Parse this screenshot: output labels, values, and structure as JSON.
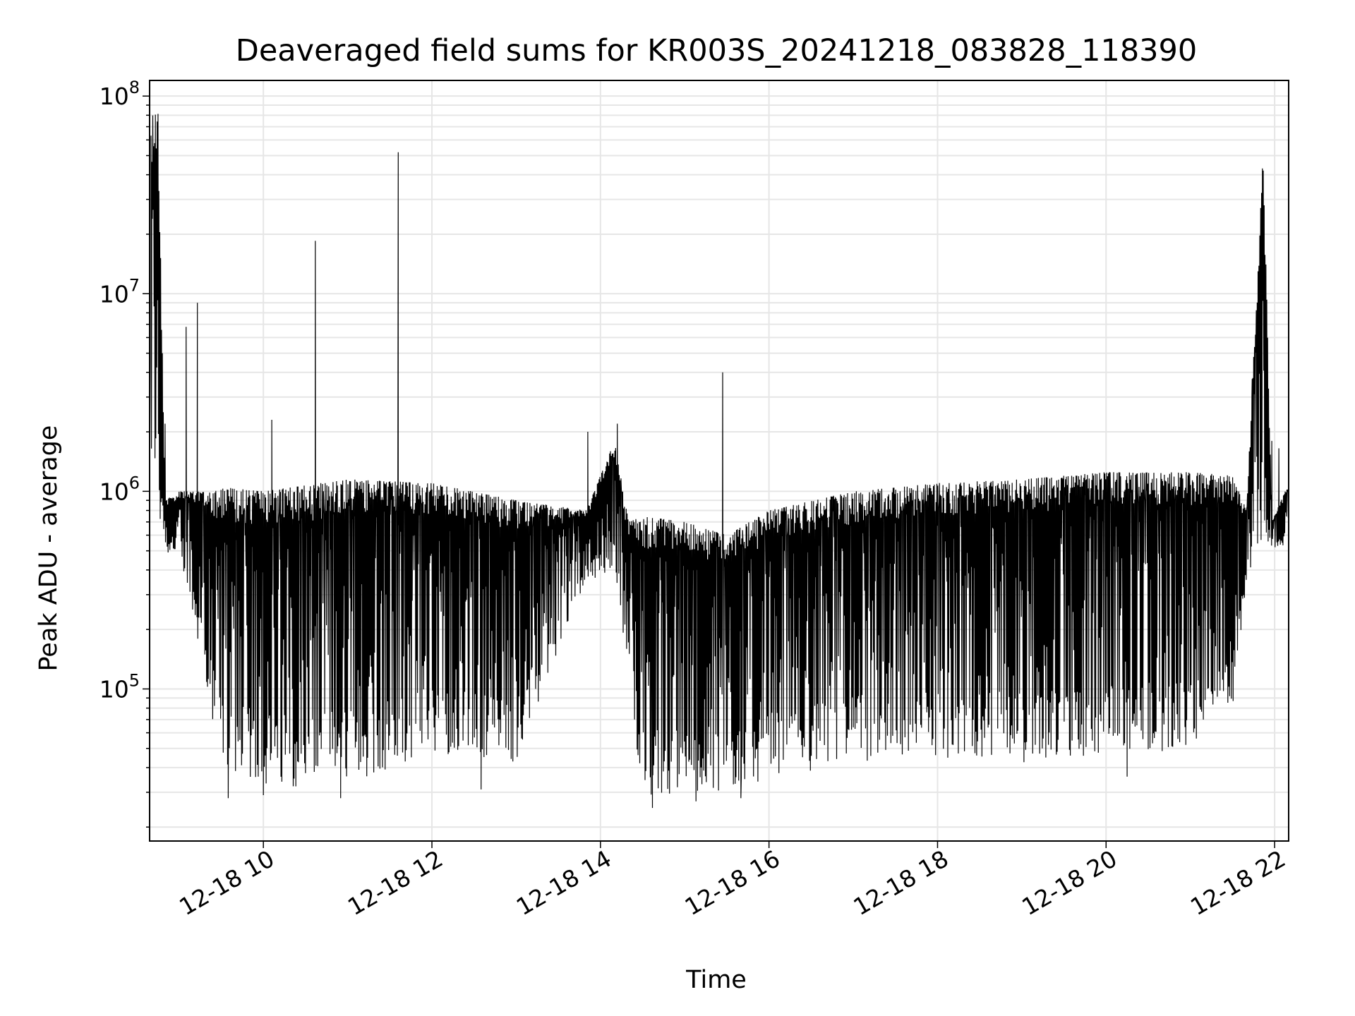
{
  "chart_data": {
    "type": "line",
    "title": "Deaveraged field sums for KR003S_20241218_083828_118390",
    "xlabel": "Time",
    "ylabel": "Peak ADU - average",
    "x_scale": "time",
    "y_scale": "log",
    "xlim": [
      "2024-12-18 08:39",
      "2024-12-18 22:10"
    ],
    "ylim": [
      17000,
      120000000
    ],
    "grid": true,
    "x_ticks": [
      {
        "label": "12-18 10",
        "t": "2024-12-18 10:00"
      },
      {
        "label": "12-18 12",
        "t": "2024-12-18 12:00"
      },
      {
        "label": "12-18 14",
        "t": "2024-12-18 14:00"
      },
      {
        "label": "12-18 16",
        "t": "2024-12-18 16:00"
      },
      {
        "label": "12-18 18",
        "t": "2024-12-18 18:00"
      },
      {
        "label": "12-18 20",
        "t": "2024-12-18 20:00"
      },
      {
        "label": "12-18 22",
        "t": "2024-12-18 22:00"
      }
    ],
    "y_ticks": [
      {
        "base": "10",
        "exp": "5",
        "value": 100000
      },
      {
        "base": "10",
        "exp": "6",
        "value": 1000000
      },
      {
        "base": "10",
        "exp": "7",
        "value": 10000000
      },
      {
        "base": "10",
        "exp": "8",
        "value": 100000000
      }
    ],
    "series": [
      {
        "color": "#000000",
        "envelope": [
          {
            "t": "2024-12-18 08:40",
            "high": 80000000,
            "low": 800000
          },
          {
            "t": "2024-12-18 08:45",
            "high": 85000000,
            "low": 700000
          },
          {
            "t": "2024-12-18 08:50",
            "high": 900000,
            "low": 500000
          },
          {
            "t": "2024-12-18 09:00",
            "high": 1000000,
            "low": 450000
          },
          {
            "t": "2024-12-18 09:15",
            "high": 1000000,
            "low": 150000
          },
          {
            "t": "2024-12-18 09:30",
            "high": 1050000,
            "low": 40000
          },
          {
            "t": "2024-12-18 10:00",
            "high": 1000000,
            "low": 32000
          },
          {
            "t": "2024-12-18 11:00",
            "high": 1150000,
            "low": 32000
          },
          {
            "t": "2024-12-18 12:00",
            "high": 1100000,
            "low": 48000
          },
          {
            "t": "2024-12-18 13:00",
            "high": 900000,
            "low": 42000
          },
          {
            "t": "2024-12-18 13:50",
            "high": 800000,
            "low": 350000
          },
          {
            "t": "2024-12-18 14:10",
            "high": 1800000,
            "low": 400000
          },
          {
            "t": "2024-12-18 14:20",
            "high": 700000,
            "low": 120000
          },
          {
            "t": "2024-12-18 14:30",
            "high": 750000,
            "low": 28000
          },
          {
            "t": "2024-12-18 15:00",
            "high": 700000,
            "low": 30000
          },
          {
            "t": "2024-12-18 15:30",
            "high": 600000,
            "low": 30000
          },
          {
            "t": "2024-12-18 16:00",
            "high": 800000,
            "low": 35000
          },
          {
            "t": "2024-12-18 17:00",
            "high": 1000000,
            "low": 42000
          },
          {
            "t": "2024-12-18 18:00",
            "high": 1100000,
            "low": 45000
          },
          {
            "t": "2024-12-18 19:00",
            "high": 1150000,
            "low": 42000
          },
          {
            "t": "2024-12-18 20:00",
            "high": 1250000,
            "low": 45000
          },
          {
            "t": "2024-12-18 21:00",
            "high": 1250000,
            "low": 50000
          },
          {
            "t": "2024-12-18 21:30",
            "high": 1200000,
            "low": 70000
          },
          {
            "t": "2024-12-18 21:40",
            "high": 800000,
            "low": 350000
          },
          {
            "t": "2024-12-18 21:52",
            "high": 55000000,
            "low": 600000
          },
          {
            "t": "2024-12-18 21:58",
            "high": 700000,
            "low": 500000
          },
          {
            "t": "2024-12-18 22:10",
            "high": 1100000,
            "low": 550000
          }
        ],
        "spikes": [
          {
            "t": "2024-12-18 08:40",
            "y": 4500000
          },
          {
            "t": "2024-12-18 08:50",
            "y": 2200000
          },
          {
            "t": "2024-12-18 09:05",
            "y": 6800000
          },
          {
            "t": "2024-12-18 09:13",
            "y": 9000000
          },
          {
            "t": "2024-12-18 10:06",
            "y": 2300000
          },
          {
            "t": "2024-12-18 10:37",
            "y": 18500000
          },
          {
            "t": "2024-12-18 11:36",
            "y": 52000000
          },
          {
            "t": "2024-12-18 13:51",
            "y": 2000000
          },
          {
            "t": "2024-12-18 14:12",
            "y": 2200000
          },
          {
            "t": "2024-12-18 15:27",
            "y": 4000000
          },
          {
            "t": "2024-12-18 21:44",
            "y": 3700000
          },
          {
            "t": "2024-12-18 21:58",
            "y": 1800000
          },
          {
            "t": "2024-12-18 22:03",
            "y": 1650000
          }
        ],
        "dips": [
          {
            "t": "2024-12-18 09:35",
            "y": 28000
          },
          {
            "t": "2024-12-18 10:00",
            "y": 29000
          },
          {
            "t": "2024-12-18 10:55",
            "y": 28000
          },
          {
            "t": "2024-12-18 12:35",
            "y": 31000
          },
          {
            "t": "2024-12-18 14:37",
            "y": 25000
          },
          {
            "t": "2024-12-18 15:08",
            "y": 27000
          },
          {
            "t": "2024-12-18 15:40",
            "y": 28000
          },
          {
            "t": "2024-12-18 20:15",
            "y": 36000
          }
        ]
      }
    ]
  }
}
